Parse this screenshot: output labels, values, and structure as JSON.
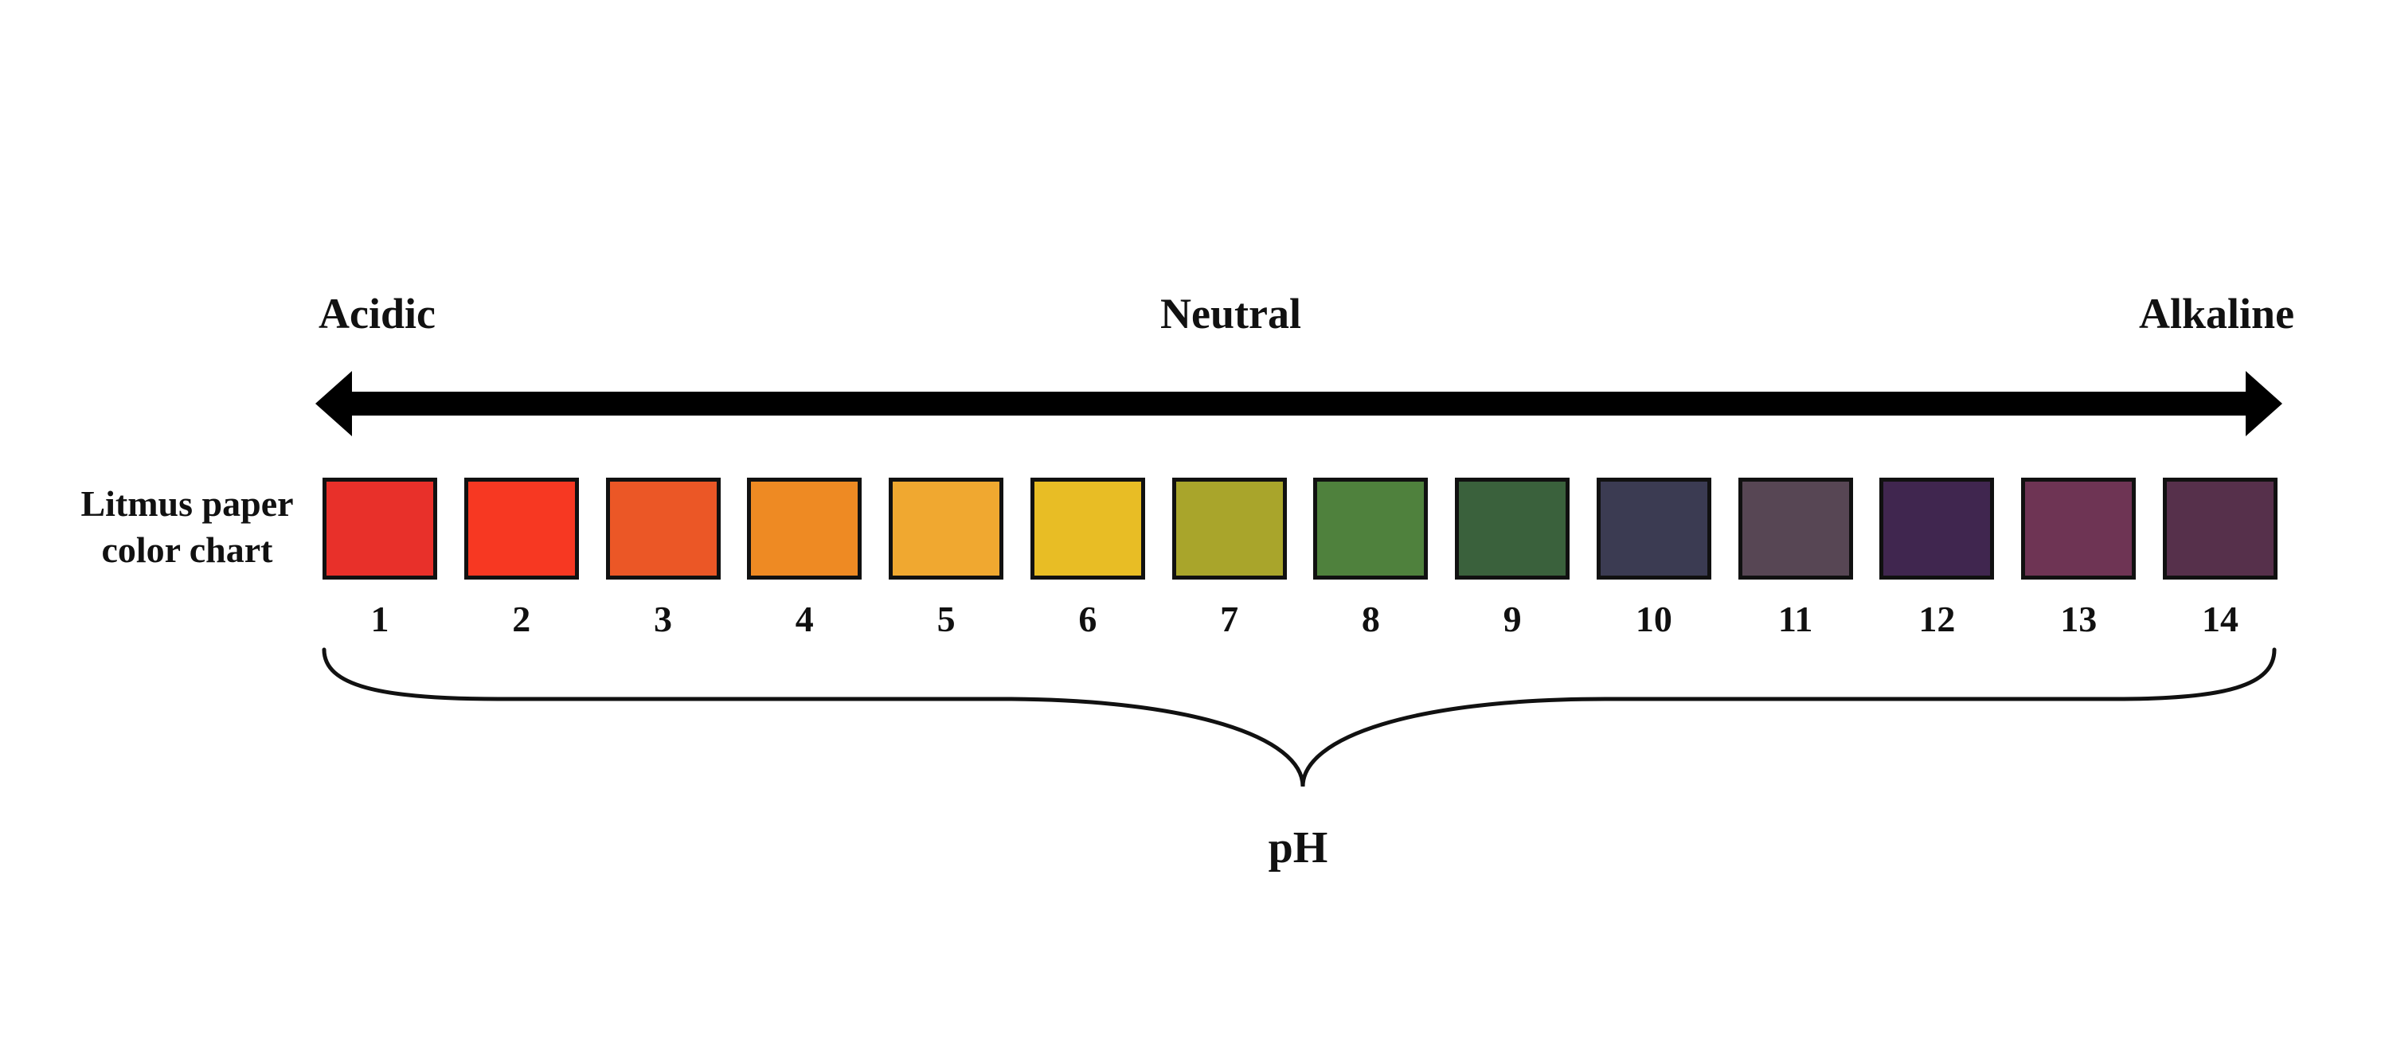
{
  "scale": {
    "acidic": "Acidic",
    "neutral": "Neutral",
    "alkaline": "Alkaline"
  },
  "chart_label": "Litmus paper color chart",
  "axis_label": "pH",
  "colors": {
    "arrow": "#000000",
    "border": "#111111"
  },
  "swatches": [
    {
      "ph": "1",
      "color": "#E8302A"
    },
    {
      "ph": "2",
      "color": "#F73822"
    },
    {
      "ph": "3",
      "color": "#EB5726"
    },
    {
      "ph": "4",
      "color": "#EE8A23"
    },
    {
      "ph": "5",
      "color": "#F0A830"
    },
    {
      "ph": "6",
      "color": "#E8BD25"
    },
    {
      "ph": "7",
      "color": "#A9A52B"
    },
    {
      "ph": "8",
      "color": "#4F813D"
    },
    {
      "ph": "9",
      "color": "#3A613C"
    },
    {
      "ph": "10",
      "color": "#3B3B52"
    },
    {
      "ph": "11",
      "color": "#574654"
    },
    {
      "ph": "12",
      "color": "#40264F"
    },
    {
      "ph": "13",
      "color": "#6E3454"
    },
    {
      "ph": "14",
      "color": "#56304B"
    }
  ]
}
